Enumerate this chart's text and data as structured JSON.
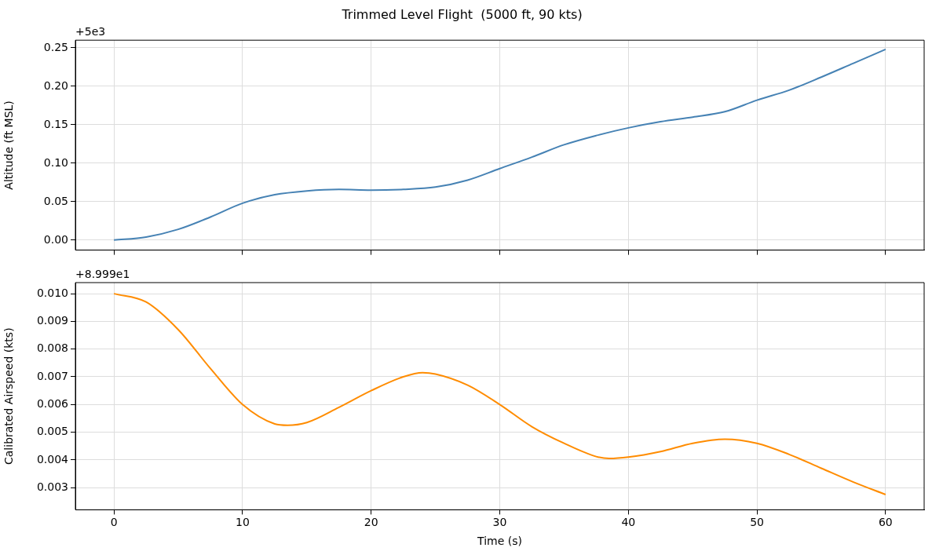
{
  "chart_data": [
    {
      "type": "line",
      "title": "Trimmed Level Flight  (5000 ft, 90 kts)",
      "ylabel": "Altitude (ft MSL)",
      "annotations": [
        "+5e3"
      ],
      "x": [
        0,
        2.5,
        5,
        7.5,
        10,
        12.5,
        15,
        17.5,
        20,
        22.5,
        25,
        27.5,
        30,
        32.5,
        35,
        37.5,
        40,
        42.5,
        45,
        47.5,
        50,
        52.5,
        55,
        57.5,
        60
      ],
      "series": [
        {
          "color": "#4682b4",
          "values": [
            0.0,
            0.004,
            0.014,
            0.03,
            0.048,
            0.059,
            0.064,
            0.066,
            0.065,
            0.066,
            0.069,
            0.078,
            0.093,
            0.108,
            0.124,
            0.136,
            0.146,
            0.154,
            0.16,
            0.167,
            0.182,
            0.195,
            0.212,
            0.23,
            0.248
          ]
        }
      ],
      "xlim": [
        -3,
        63
      ],
      "xticks": [
        0,
        10,
        20,
        30,
        40,
        50,
        60
      ],
      "ylim": [
        -0.013,
        0.26
      ],
      "yticks": [
        {
          "value": 0,
          "label": "0.00"
        },
        0.05,
        {
          "value": 0.1,
          "label": "0.10"
        },
        0.15,
        {
          "value": 0.2,
          "label": "0.20"
        },
        0.25
      ],
      "grid": true,
      "tick_labels": "y",
      "marker": "none",
      "line_style": "solid",
      "legend": false
    },
    {
      "type": "line",
      "xlabel": "Time (s)",
      "ylabel": "Calibrated Airspeed (kts)",
      "annotations": [
        "+8.999e1"
      ],
      "x": [
        0,
        2.5,
        5,
        7.5,
        10,
        12.5,
        13.5,
        15,
        17.5,
        20,
        22.5,
        24,
        25,
        27.5,
        30,
        32.5,
        35,
        37.5,
        38.5,
        40,
        42.5,
        45,
        47.5,
        50,
        52.5,
        55,
        57.5,
        60
      ],
      "series": [
        {
          "color": "#ff8c00",
          "values": [
            0.01,
            0.0097,
            0.0087,
            0.0073,
            0.006,
            0.0053,
            0.00525,
            0.00535,
            0.0059,
            0.0065,
            0.007,
            0.00715,
            0.0071,
            0.0067,
            0.006,
            0.0052,
            0.0046,
            0.00412,
            0.00405,
            0.0041,
            0.0043,
            0.0046,
            0.00475,
            0.0046,
            0.0042,
            0.0037,
            0.0032,
            0.00275
          ]
        }
      ],
      "xlim": [
        -3,
        63
      ],
      "xticks": [
        0,
        10,
        20,
        30,
        40,
        50,
        60
      ],
      "ylim": [
        0.0022,
        0.0104
      ],
      "yticks": [
        0.003,
        0.004,
        0.005,
        0.006,
        0.007,
        0.008,
        0.009,
        {
          "value": 0.01,
          "label": "0.010"
        }
      ],
      "grid": true,
      "marker": "none",
      "line_style": "solid",
      "legend": false
    }
  ]
}
